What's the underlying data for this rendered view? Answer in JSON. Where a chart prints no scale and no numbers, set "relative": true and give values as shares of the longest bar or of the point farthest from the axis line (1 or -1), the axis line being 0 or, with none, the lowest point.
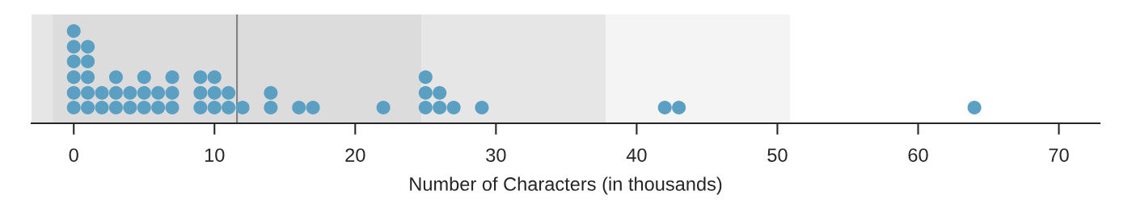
{
  "chart_data": {
    "type": "scatter",
    "relative": true,
    "xlabel": "Number of Characters (in thousands)",
    "x": [
      0,
      0,
      0,
      0,
      0,
      0,
      1,
      1,
      1,
      1,
      1,
      2,
      2,
      3,
      3,
      3,
      4,
      4,
      5,
      5,
      5,
      6,
      6,
      7,
      7,
      7,
      9,
      9,
      9,
      10,
      10,
      10,
      11,
      11,
      12,
      14,
      14,
      16,
      17,
      22,
      25,
      25,
      25,
      26,
      26,
      27,
      29,
      42,
      43,
      64
    ],
    "values": [
      0.17,
      0.33,
      0.5,
      0.67,
      0.83,
      1,
      0.17,
      0.33,
      0.5,
      0.67,
      0.83,
      0.17,
      0.33,
      0.17,
      0.33,
      0.5,
      0.17,
      0.33,
      0.17,
      0.33,
      0.5,
      0.17,
      0.33,
      0.17,
      0.33,
      0.5,
      0.17,
      0.33,
      0.5,
      0.17,
      0.33,
      0.5,
      0.17,
      0.33,
      0.17,
      0.17,
      0.33,
      0.17,
      0.17,
      0.17,
      0.17,
      0.33,
      0.5,
      0.17,
      0.33,
      0.17,
      0.17,
      0.17,
      0.17,
      0.17
    ],
    "color": "#5b9fc3",
    "marker": "circle",
    "xlim": [
      -3,
      72.9
    ],
    "xticks": [
      0,
      10,
      20,
      30,
      40,
      50,
      60,
      70
    ],
    "bands": [
      {
        "axis": "x",
        "from": -3,
        "to": -1.5,
        "color": "#e6e6e6"
      },
      {
        "axis": "x",
        "from": -1.5,
        "to": 24.7,
        "color": "#dcdcdc"
      },
      {
        "axis": "x",
        "from": 24.7,
        "to": 37.8,
        "color": "#e6e6e6"
      },
      {
        "axis": "x",
        "from": 37.8,
        "to": 50.9,
        "color": "#f4f4f4"
      }
    ],
    "ref_lines": [
      {
        "axis": "x",
        "value": 11.6,
        "color": "#808080",
        "line_style": "solid"
      }
    ],
    "grid": false,
    "legend": false
  }
}
